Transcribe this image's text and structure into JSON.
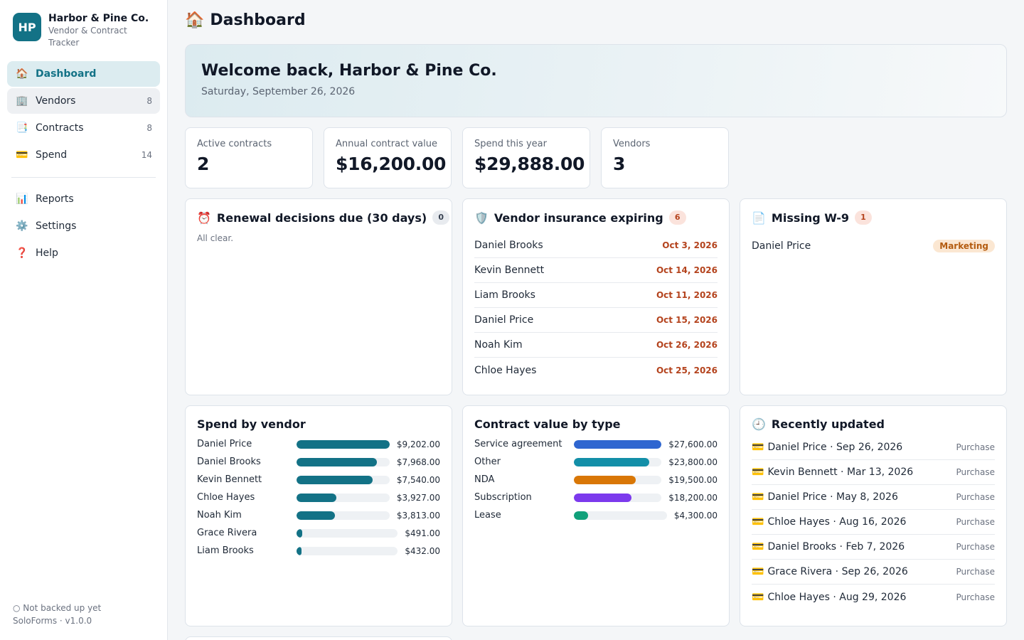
{
  "app": {
    "logo_initials": "HP",
    "name": "Harbor & Pine Co.",
    "subtitle": "Vendor & Contract Tracker"
  },
  "sidebar": {
    "items": [
      {
        "label": "Dashboard",
        "icon": "house-icon",
        "glyph": "🏠",
        "count": "",
        "active": true
      },
      {
        "label": "Vendors",
        "icon": "office-building-icon",
        "glyph": "🏢",
        "count": "8"
      },
      {
        "label": "Contracts",
        "icon": "document-icon",
        "glyph": "📑",
        "count": "8"
      },
      {
        "label": "Spend",
        "icon": "credit-card-icon",
        "glyph": "💳",
        "count": "14"
      }
    ],
    "secondary": [
      {
        "label": "Reports",
        "icon": "bar-chart-icon",
        "glyph": "📊"
      },
      {
        "label": "Settings",
        "icon": "gear-icon",
        "glyph": "⚙️"
      },
      {
        "label": "Help",
        "icon": "question-icon",
        "glyph": "❓"
      }
    ],
    "footer": {
      "backup_status": "○ Not backed up yet",
      "version": "SoloForms · v1.0.0"
    }
  },
  "header": {
    "title": "Dashboard",
    "icon_glyph": "🏠"
  },
  "welcome": {
    "heading": "Welcome back, Harbor & Pine Co.",
    "date": "Saturday, September 26, 2026"
  },
  "kpis": [
    {
      "label": "Active contracts",
      "value": "2"
    },
    {
      "label": "Annual contract value",
      "value": "$16,200.00"
    },
    {
      "label": "Spend this year",
      "value": "$29,888.00"
    },
    {
      "label": "Vendors",
      "value": "3"
    }
  ],
  "renewals": {
    "title": "Renewal decisions due (30 days)",
    "icon_glyph": "⏰",
    "count": "0",
    "empty_text": "All clear."
  },
  "insurance": {
    "title": "Vendor insurance expiring",
    "icon_glyph": "🛡️",
    "count": "6",
    "rows": [
      {
        "name": "Daniel Brooks",
        "date": "Oct 3, 2026"
      },
      {
        "name": "Kevin Bennett",
        "date": "Oct 14, 2026"
      },
      {
        "name": "Liam Brooks",
        "date": "Oct 11, 2026"
      },
      {
        "name": "Daniel Price",
        "date": "Oct 15, 2026"
      },
      {
        "name": "Noah Kim",
        "date": "Oct 26, 2026"
      },
      {
        "name": "Chloe Hayes",
        "date": "Oct 25, 2026"
      }
    ]
  },
  "missing_w9": {
    "title": "Missing W-9",
    "icon_glyph": "📄",
    "count": "1",
    "rows": [
      {
        "name": "Daniel Price",
        "tag": "Marketing"
      }
    ]
  },
  "spend_by_vendor": {
    "title": "Spend by vendor",
    "color": "#137286",
    "max": 9202,
    "rows": [
      {
        "label": "Daniel Price",
        "value": 9202,
        "display": "$9,202.00"
      },
      {
        "label": "Daniel Brooks",
        "value": 7968,
        "display": "$7,968.00"
      },
      {
        "label": "Kevin Bennett",
        "value": 7540,
        "display": "$7,540.00"
      },
      {
        "label": "Chloe Hayes",
        "value": 3927,
        "display": "$3,927.00"
      },
      {
        "label": "Noah Kim",
        "value": 3813,
        "display": "$3,813.00"
      },
      {
        "label": "Grace Rivera",
        "value": 491,
        "display": "$491.00"
      },
      {
        "label": "Liam Brooks",
        "value": 432,
        "display": "$432.00"
      }
    ]
  },
  "contract_value_by_type": {
    "title": "Contract value by type",
    "max": 27600,
    "rows": [
      {
        "label": "Service agreement",
        "value": 27600,
        "display": "$27,600.00",
        "color": "#2f66d0"
      },
      {
        "label": "Other",
        "value": 23800,
        "display": "$23,800.00",
        "color": "#138fa8"
      },
      {
        "label": "NDA",
        "value": 19500,
        "display": "$19,500.00",
        "color": "#d97706"
      },
      {
        "label": "Subscription",
        "value": 18200,
        "display": "$18,200.00",
        "color": "#7c3aed"
      },
      {
        "label": "Lease",
        "value": 4300,
        "display": "$4,300.00",
        "color": "#11a07a"
      }
    ]
  },
  "recently_updated": {
    "title": "Recently updated",
    "icon_glyph": "🕘",
    "rows": [
      {
        "text": "Daniel Price · Sep 26, 2026",
        "tag": "Purchase"
      },
      {
        "text": "Kevin Bennett · Mar 13, 2026",
        "tag": "Purchase"
      },
      {
        "text": "Daniel Price · May 8, 2026",
        "tag": "Purchase"
      },
      {
        "text": "Chloe Hayes · Aug 16, 2026",
        "tag": "Purchase"
      },
      {
        "text": "Daniel Brooks · Feb 7, 2026",
        "tag": "Purchase"
      },
      {
        "text": "Grace Rivera · Sep 26, 2026",
        "tag": "Purchase"
      },
      {
        "text": "Chloe Hayes · Aug 29, 2026",
        "tag": "Purchase"
      }
    ],
    "row_glyph": "💳"
  }
}
